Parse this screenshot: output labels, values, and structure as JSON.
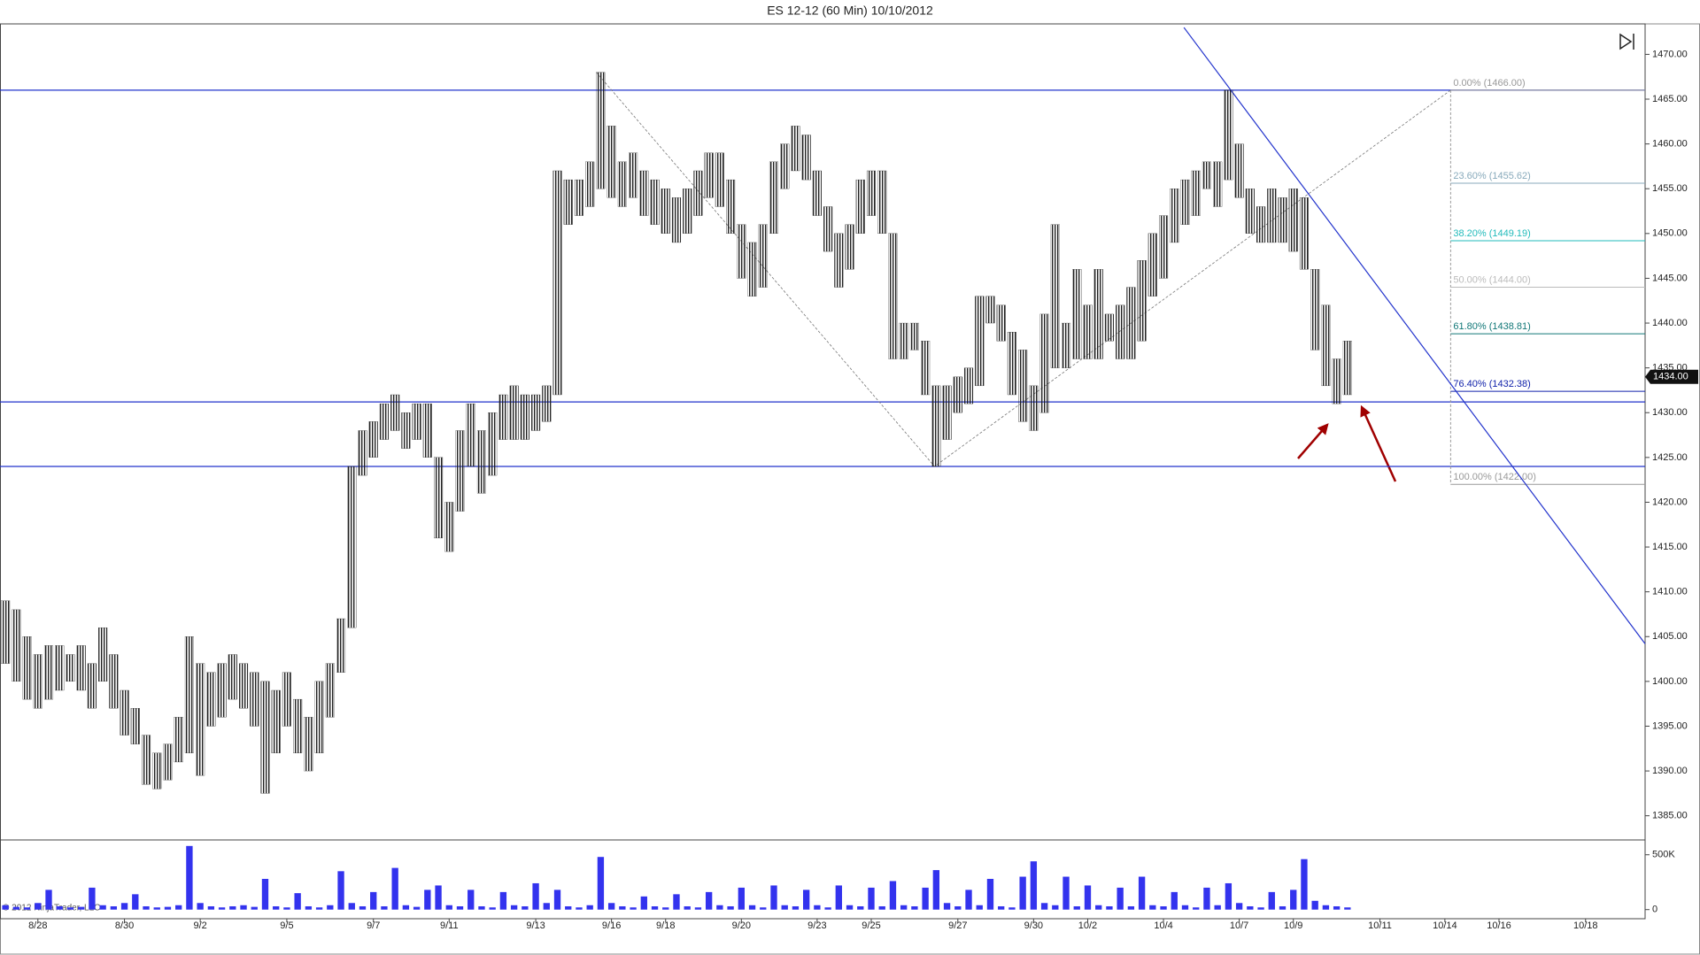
{
  "chart_data": {
    "type": "ohlc",
    "title": "ES 12-12 (60 Min)  10/10/2012",
    "copyright": "© 2012 NinjaTrader, LLC",
    "categories": [
      null,
      null,
      null,
      "8/28",
      null,
      null,
      null,
      null,
      null,
      null,
      null,
      "8/30",
      null,
      null,
      null,
      null,
      null,
      null,
      "9/2",
      null,
      null,
      null,
      null,
      null,
      null,
      null,
      "9/5",
      null,
      null,
      null,
      null,
      null,
      null,
      null,
      "9/7",
      null,
      null,
      null,
      null,
      null,
      null,
      "9/11",
      null,
      null,
      null,
      null,
      null,
      null,
      null,
      "9/13",
      null,
      null,
      null,
      null,
      null,
      null,
      "9/16",
      null,
      null,
      null,
      null,
      "9/18",
      null,
      null,
      null,
      null,
      null,
      null,
      "9/20",
      null,
      null,
      null,
      null,
      null,
      null,
      "9/23",
      null,
      null,
      null,
      null,
      "9/25",
      null,
      null,
      null,
      null,
      null,
      null,
      null,
      "9/27",
      null,
      null,
      null,
      null,
      null,
      null,
      "9/30",
      null,
      null,
      null,
      null,
      "10/2",
      null,
      null,
      null,
      null,
      null,
      null,
      "10/4",
      null,
      null,
      null,
      null,
      null,
      null,
      "10/7",
      null,
      null,
      null,
      null,
      "10/9",
      null,
      null,
      null,
      null,
      null,
      null,
      null,
      "10/11",
      null,
      null,
      null,
      null,
      null,
      "10/14",
      null,
      null,
      null,
      null,
      "10/16",
      null,
      null,
      null,
      null,
      null,
      null,
      null,
      "10/18",
      null,
      null,
      null,
      null,
      null
    ],
    "high": [
      1409,
      1408,
      1405,
      1403,
      1404,
      1404,
      1403,
      1404,
      1402,
      1406,
      1403,
      1399,
      1397,
      1394,
      1392,
      1393,
      1396,
      1405,
      1402,
      1401,
      1402,
      1403,
      1402,
      1401,
      1400,
      1399,
      1401,
      1398,
      1396,
      1400,
      1402,
      1407,
      1424,
      1428,
      1429,
      1431,
      1432,
      1430,
      1431,
      1431,
      1425,
      1420,
      1428,
      1431,
      1428,
      1430,
      1432,
      1433,
      1432,
      1432,
      1433,
      1457,
      1456,
      1456,
      1458,
      1468,
      1462,
      1458,
      1459,
      1457,
      1456,
      1455,
      1454,
      1455,
      1457,
      1459,
      1459,
      1456,
      1451,
      1449,
      1451,
      1458,
      1460,
      1462,
      1461,
      1457,
      1453,
      1450,
      1451,
      1456,
      1457,
      1457,
      1450,
      1440,
      1440,
      1438,
      1433,
      1433,
      1434,
      1435,
      1443,
      1443,
      1442,
      1439,
      1437,
      1433,
      1441,
      1451,
      1440,
      1446,
      1442,
      1446,
      1441,
      1442,
      1444,
      1447,
      1450,
      1452,
      1455,
      1456,
      1457,
      1458,
      1458,
      1466,
      1460,
      1455,
      1453,
      1455,
      1454,
      1455,
      1454,
      1446,
      1442,
      1436,
      1438,
      null,
      null,
      null,
      null,
      null,
      null,
      null,
      null,
      null,
      null,
      null,
      null,
      null,
      null,
      null,
      null,
      null,
      null,
      null,
      null,
      null,
      null,
      null,
      null,
      null,
      null,
      null
    ],
    "low": [
      1402,
      1400,
      1398,
      1397,
      1398,
      1399,
      1400,
      1399,
      1397,
      1400,
      1397,
      1394,
      1393,
      1388.5,
      1388,
      1389,
      1391,
      1392,
      1389.5,
      1395,
      1396,
      1398,
      1397,
      1395,
      1387.5,
      1392,
      1395,
      1392,
      1390,
      1392,
      1396,
      1401,
      1406,
      1423,
      1425,
      1427,
      1428,
      1426,
      1427,
      1425,
      1416,
      1414.5,
      1419,
      1424,
      1421,
      1423,
      1427,
      1427,
      1427,
      1428,
      1429,
      1432,
      1451,
      1452,
      1453,
      1455,
      1454,
      1453,
      1454,
      1452,
      1451,
      1450,
      1449,
      1450,
      1452,
      1454,
      1453,
      1450,
      1445,
      1443,
      1444,
      1450,
      1455,
      1457,
      1456,
      1452,
      1448,
      1444,
      1446,
      1450,
      1452,
      1450,
      1436,
      1436,
      1437,
      1432,
      1424,
      1427,
      1430,
      1431,
      1433,
      1440,
      1438,
      1432,
      1429,
      1428,
      1430,
      1435,
      1435,
      1436,
      1436,
      1436,
      1438,
      1436,
      1436,
      1438,
      1443,
      1445,
      1449,
      1451,
      1452,
      1455,
      1453,
      1456,
      1454,
      1450,
      1449,
      1449,
      1449,
      1448,
      1446,
      1437,
      1433,
      1431,
      1432,
      null,
      null,
      null,
      null,
      null,
      null,
      null,
      null,
      null,
      null,
      null,
      null,
      null,
      null,
      null,
      null,
      null,
      null,
      null,
      null,
      null,
      null,
      null,
      null,
      null,
      null,
      null
    ],
    "color": "#222222",
    "ylim": [
      1382.3,
      1473.4
    ],
    "yticks": [
      {
        "value": 1385,
        "label": "1385.00"
      },
      {
        "value": 1390,
        "label": "1390.00"
      },
      {
        "value": 1395,
        "label": "1395.00"
      },
      {
        "value": 1400,
        "label": "1400.00"
      },
      {
        "value": 1405,
        "label": "1405.00"
      },
      {
        "value": 1410,
        "label": "1410.00"
      },
      {
        "value": 1415,
        "label": "1415.00"
      },
      {
        "value": 1420,
        "label": "1420.00"
      },
      {
        "value": 1425,
        "label": "1425.00"
      },
      {
        "value": 1430,
        "label": "1430.00"
      },
      {
        "value": 1435,
        "label": "1435.00"
      },
      {
        "value": 1440,
        "label": "1440.00"
      },
      {
        "value": 1445,
        "label": "1445.00"
      },
      {
        "value": 1450,
        "label": "1450.00"
      },
      {
        "value": 1455,
        "label": "1455.00"
      },
      {
        "value": 1460,
        "label": "1460.00"
      },
      {
        "value": 1465,
        "label": "1465.00"
      },
      {
        "value": 1470,
        "label": "1470.00"
      }
    ],
    "last": {
      "value": 1434,
      "label": "1434.00"
    },
    "levels": [
      1466,
      1431.2,
      1424
    ],
    "level_color": "#2233cc",
    "zigzag": [
      1468,
      1424,
      1466
    ],
    "trendline": [
      1473,
      1404.2
    ],
    "fib_levels": [
      {
        "label": "0.00% (1466.00)",
        "value": 1466,
        "color": "#999999"
      },
      {
        "label": "23.60% (1455.62)",
        "value": 1455.62,
        "color": "#88aabb"
      },
      {
        "label": "38.20% (1449.19)",
        "value": 1449.19,
        "color": "#22bbbb"
      },
      {
        "label": "50.00% (1444.00)",
        "value": 1444,
        "color": "#bbbbbb"
      },
      {
        "label": "61.80% (1438.81)",
        "value": 1438.81,
        "color": "#117777"
      },
      {
        "label": "76.40% (1432.38)",
        "value": 1432.38,
        "color": "#1122aa"
      },
      {
        "label": "100.00% (1422.00)",
        "value": 1422,
        "color": "#999999"
      }
    ],
    "volume": [
      40,
      25,
      20,
      60,
      180,
      30,
      20,
      25,
      200,
      40,
      30,
      60,
      140,
      30,
      20,
      25,
      40,
      580,
      60,
      30,
      20,
      30,
      40,
      25,
      280,
      30,
      20,
      150,
      30,
      20,
      40,
      350,
      60,
      30,
      160,
      30,
      380,
      40,
      25,
      180,
      220,
      40,
      30,
      180,
      30,
      20,
      160,
      40,
      30,
      240,
      60,
      180,
      30,
      20,
      40,
      480,
      60,
      30,
      20,
      120,
      30,
      20,
      140,
      30,
      20,
      160,
      40,
      30,
      200,
      40,
      20,
      220,
      40,
      30,
      180,
      40,
      20,
      220,
      40,
      30,
      200,
      30,
      260,
      40,
      30,
      200,
      360,
      60,
      30,
      180,
      40,
      280,
      30,
      20,
      300,
      440,
      60,
      40,
      300,
      30,
      220,
      40,
      30,
      200,
      30,
      300,
      40,
      30,
      160,
      40,
      20,
      200,
      40,
      240,
      60,
      30,
      20,
      160,
      30,
      180,
      460,
      80,
      40,
      30,
      20,
      null,
      null,
      null,
      null,
      null,
      null,
      null,
      null,
      null,
      null,
      null,
      null,
      null,
      null,
      null,
      null,
      null,
      null,
      null,
      null,
      null,
      null,
      null,
      null,
      null,
      null,
      null
    ],
    "volume_color": "#3333ee",
    "volume_ylim": [
      -83,
      635
    ],
    "volume_yticks": [
      0,
      {
        "value": 500,
        "label": "500K"
      }
    ]
  }
}
